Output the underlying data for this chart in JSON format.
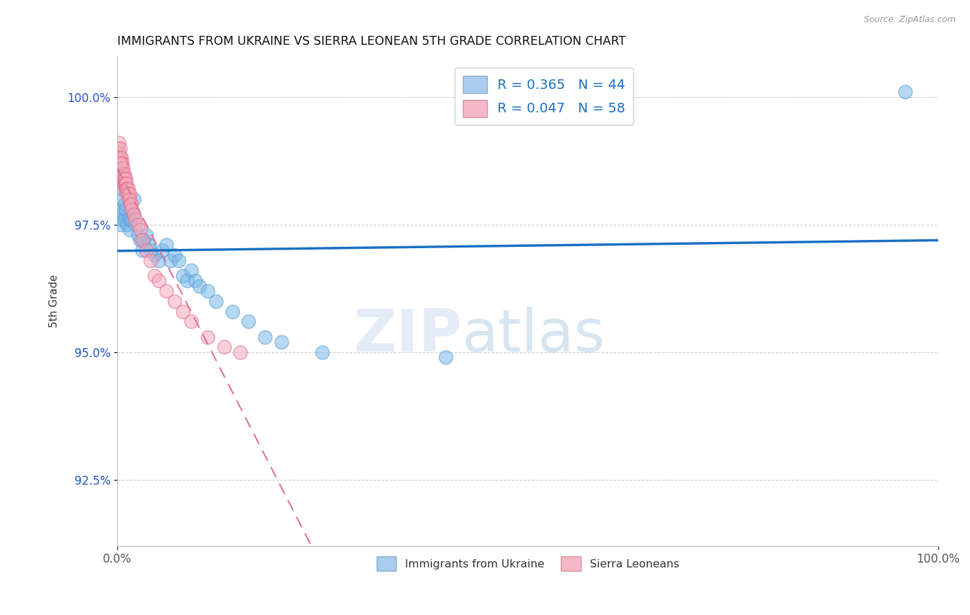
{
  "title": "IMMIGRANTS FROM UKRAINE VS SIERRA LEONEAN 5TH GRADE CORRELATION CHART",
  "source": "Source: ZipAtlas.com",
  "ylabel": "5th Grade",
  "xlabel": "",
  "xlim": [
    0.0,
    1.0
  ],
  "ylim": [
    0.912,
    1.008
  ],
  "yticks": [
    0.925,
    0.95,
    0.975,
    1.0
  ],
  "ytick_labels": [
    "92.5%",
    "95.0%",
    "97.5%",
    "100.0%"
  ],
  "xticks": [
    0.0,
    1.0
  ],
  "xtick_labels": [
    "0.0%",
    "100.0%"
  ],
  "legend_label1": "R = 0.365   N = 44",
  "legend_label2": "R = 0.047   N = 58",
  "legend_label_bottom1": "Immigrants from Ukraine",
  "legend_label_bottom2": "Sierra Leoneans",
  "blue_color": "#7ab8e8",
  "blue_edge_color": "#5a9fd4",
  "pink_color": "#f4aabb",
  "pink_edge_color": "#e07090",
  "watermark_zip": "ZIP",
  "watermark_atlas": "atlas",
  "blue_r": 0.365,
  "blue_n": 44,
  "pink_r": 0.047,
  "pink_n": 58,
  "blue_points_x": [
    0.002,
    0.003,
    0.004,
    0.005,
    0.006,
    0.007,
    0.008,
    0.009,
    0.01,
    0.012,
    0.014,
    0.015,
    0.017,
    0.02,
    0.022,
    0.025,
    0.028,
    0.03,
    0.032,
    0.035,
    0.038,
    0.04,
    0.045,
    0.05,
    0.055,
    0.06,
    0.065,
    0.07,
    0.075,
    0.08,
    0.085,
    0.09,
    0.095,
    0.1,
    0.11,
    0.12,
    0.14,
    0.16,
    0.18,
    0.2,
    0.25,
    0.4,
    0.96,
    0.02
  ],
  "blue_points_y": [
    0.978,
    0.976,
    0.975,
    0.98,
    0.982,
    0.977,
    0.976,
    0.979,
    0.978,
    0.975,
    0.976,
    0.974,
    0.976,
    0.977,
    0.975,
    0.973,
    0.972,
    0.97,
    0.972,
    0.973,
    0.971,
    0.97,
    0.969,
    0.968,
    0.97,
    0.971,
    0.968,
    0.969,
    0.968,
    0.965,
    0.964,
    0.966,
    0.964,
    0.963,
    0.962,
    0.96,
    0.958,
    0.956,
    0.953,
    0.952,
    0.95,
    0.949,
    1.001,
    0.98
  ],
  "pink_points_x": [
    0.001,
    0.001,
    0.002,
    0.002,
    0.003,
    0.003,
    0.003,
    0.004,
    0.004,
    0.004,
    0.005,
    0.005,
    0.005,
    0.005,
    0.006,
    0.006,
    0.006,
    0.007,
    0.007,
    0.007,
    0.007,
    0.008,
    0.008,
    0.008,
    0.009,
    0.009,
    0.01,
    0.01,
    0.01,
    0.011,
    0.011,
    0.012,
    0.012,
    0.013,
    0.013,
    0.014,
    0.015,
    0.015,
    0.016,
    0.017,
    0.018,
    0.02,
    0.022,
    0.025,
    0.028,
    0.03,
    0.035,
    0.04,
    0.045,
    0.05,
    0.06,
    0.07,
    0.08,
    0.09,
    0.11,
    0.13,
    0.15,
    0.003
  ],
  "pink_points_y": [
    0.99,
    0.988,
    0.991,
    0.989,
    0.99,
    0.988,
    0.987,
    0.988,
    0.987,
    0.986,
    0.988,
    0.987,
    0.986,
    0.985,
    0.987,
    0.986,
    0.984,
    0.986,
    0.985,
    0.984,
    0.983,
    0.985,
    0.984,
    0.983,
    0.984,
    0.983,
    0.984,
    0.983,
    0.982,
    0.983,
    0.982,
    0.982,
    0.981,
    0.982,
    0.981,
    0.98,
    0.981,
    0.98,
    0.979,
    0.979,
    0.978,
    0.977,
    0.976,
    0.975,
    0.974,
    0.972,
    0.97,
    0.968,
    0.965,
    0.964,
    0.962,
    0.96,
    0.958,
    0.956,
    0.953,
    0.951,
    0.95,
    0.987
  ]
}
